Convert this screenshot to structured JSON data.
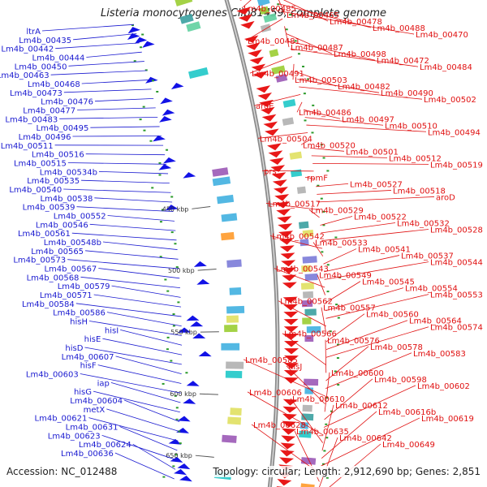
{
  "title": "Listeria monocytogenes Clip81459, complete genome",
  "footer": {
    "accession": "Accession: NC_012488",
    "topology": "Topology: circular; Length: 2,912,690 bp; Genes: 2,851"
  },
  "colors": {
    "left_label": "#1a1ad0",
    "right_label": "#e01010",
    "backbone": "#8c8c8c",
    "forward_arrow": "#1212e6",
    "reverse_arrow": "#e81818"
  },
  "scale_ticks": [
    "450 kbp",
    "500 kbp",
    "550 kbp",
    "600 kbp",
    "650 kbp"
  ],
  "left_labels": [
    "ltrA",
    "Lm4b_00435",
    "Lm4b_00442",
    "Lm4b_00444",
    "Lm4b_00450",
    "Lm4b_00463",
    "Lm4b_00468",
    "Lm4b_00473",
    "Lm4b_00476",
    "Lm4b_00477",
    "Lm4b_00483",
    "Lm4b_00495",
    "Lm4b_00496",
    "Lm4b_00511",
    "Lm4b_00516",
    "Lm4b_00515",
    "Lm4b_00534b",
    "Lm4b_00535",
    "Lm4b_00540",
    "Lm4b_00538",
    "Lm4b_00539",
    "Lm4b_00552",
    "Lm4b_00546",
    "Lm4b_00561",
    "Lm4b_00548b",
    "Lm4b_00565",
    "Lm4b_00573",
    "Lm4b_00567",
    "Lm4b_00568",
    "Lm4b_00579",
    "Lm4b_00571",
    "Lm4b_00584",
    "Lm4b_00586",
    "hisH",
    "hisI",
    "hisE",
    "hisD",
    "Lm4b_00607",
    "hisF",
    "Lm4b_00603",
    "iap",
    "hisG",
    "Lm4b_00604",
    "metX",
    "Lm4b_00621",
    "Lm4b_00631",
    "Lm4b_00623",
    "Lm4b_00624",
    "Lm4b_00636"
  ],
  "right_labels": [
    "Lm4b_00485",
    "Lm4b_00465",
    "Lm4b_00478",
    "Lm4b_00488",
    "Lm4b_00470",
    "Lm4b_00481",
    "Lm4b_00487",
    "Lm4b_00498",
    "Lm4b_00472",
    "Lm4b_00484",
    "Lm4b_00491",
    "Lm4b_00503",
    "Lm4b_00482",
    "Lm4b_00490",
    "Lm4b_00502",
    "aroE",
    "Lm4b_00486",
    "Lm4b_00497",
    "Lm4b_00510",
    "Lm4b_00494",
    "Lm4b_00504",
    "Lm4b_00520",
    "Lm4b_00501",
    "Lm4b_00512",
    "Lm4b_00519",
    "prs",
    "rpmF",
    "Lm4b_00527",
    "Lm4b_00518",
    "aroD",
    "Lm4b_00517",
    "Lm4b_00529",
    "Lm4b_00522",
    "Lm4b_00532",
    "Lm4b_00528",
    "Lm4b_00542",
    "Lm4b_00533",
    "Lm4b_00541",
    "Lm4b_00537",
    "Lm4b_00544",
    "Lm4b_00543",
    "Lm4b_00549",
    "Lm4b_00545",
    "Lm4b_00554",
    "Lm4b_00553",
    "Lm4b_00562",
    "Lm4b_00557",
    "Lm4b_00560",
    "Lm4b_00564",
    "Lm4b_00574",
    "Lm4b_00566",
    "Lm4b_00576",
    "Lm4b_00578",
    "Lm4b_00583",
    "Lm4b_00585",
    "hisJ",
    "Lm4b_00600",
    "Lm4b_00598",
    "Lm4b_00602",
    "Lm4b_00606",
    "Lm4b_00610",
    "Lm4b_00612",
    "Lm4b_00616b",
    "Lm4b_00619",
    "Lm4b_00628",
    "Lm4b_00635",
    "Lm4b_00642",
    "Lm4b_00649"
  ]
}
